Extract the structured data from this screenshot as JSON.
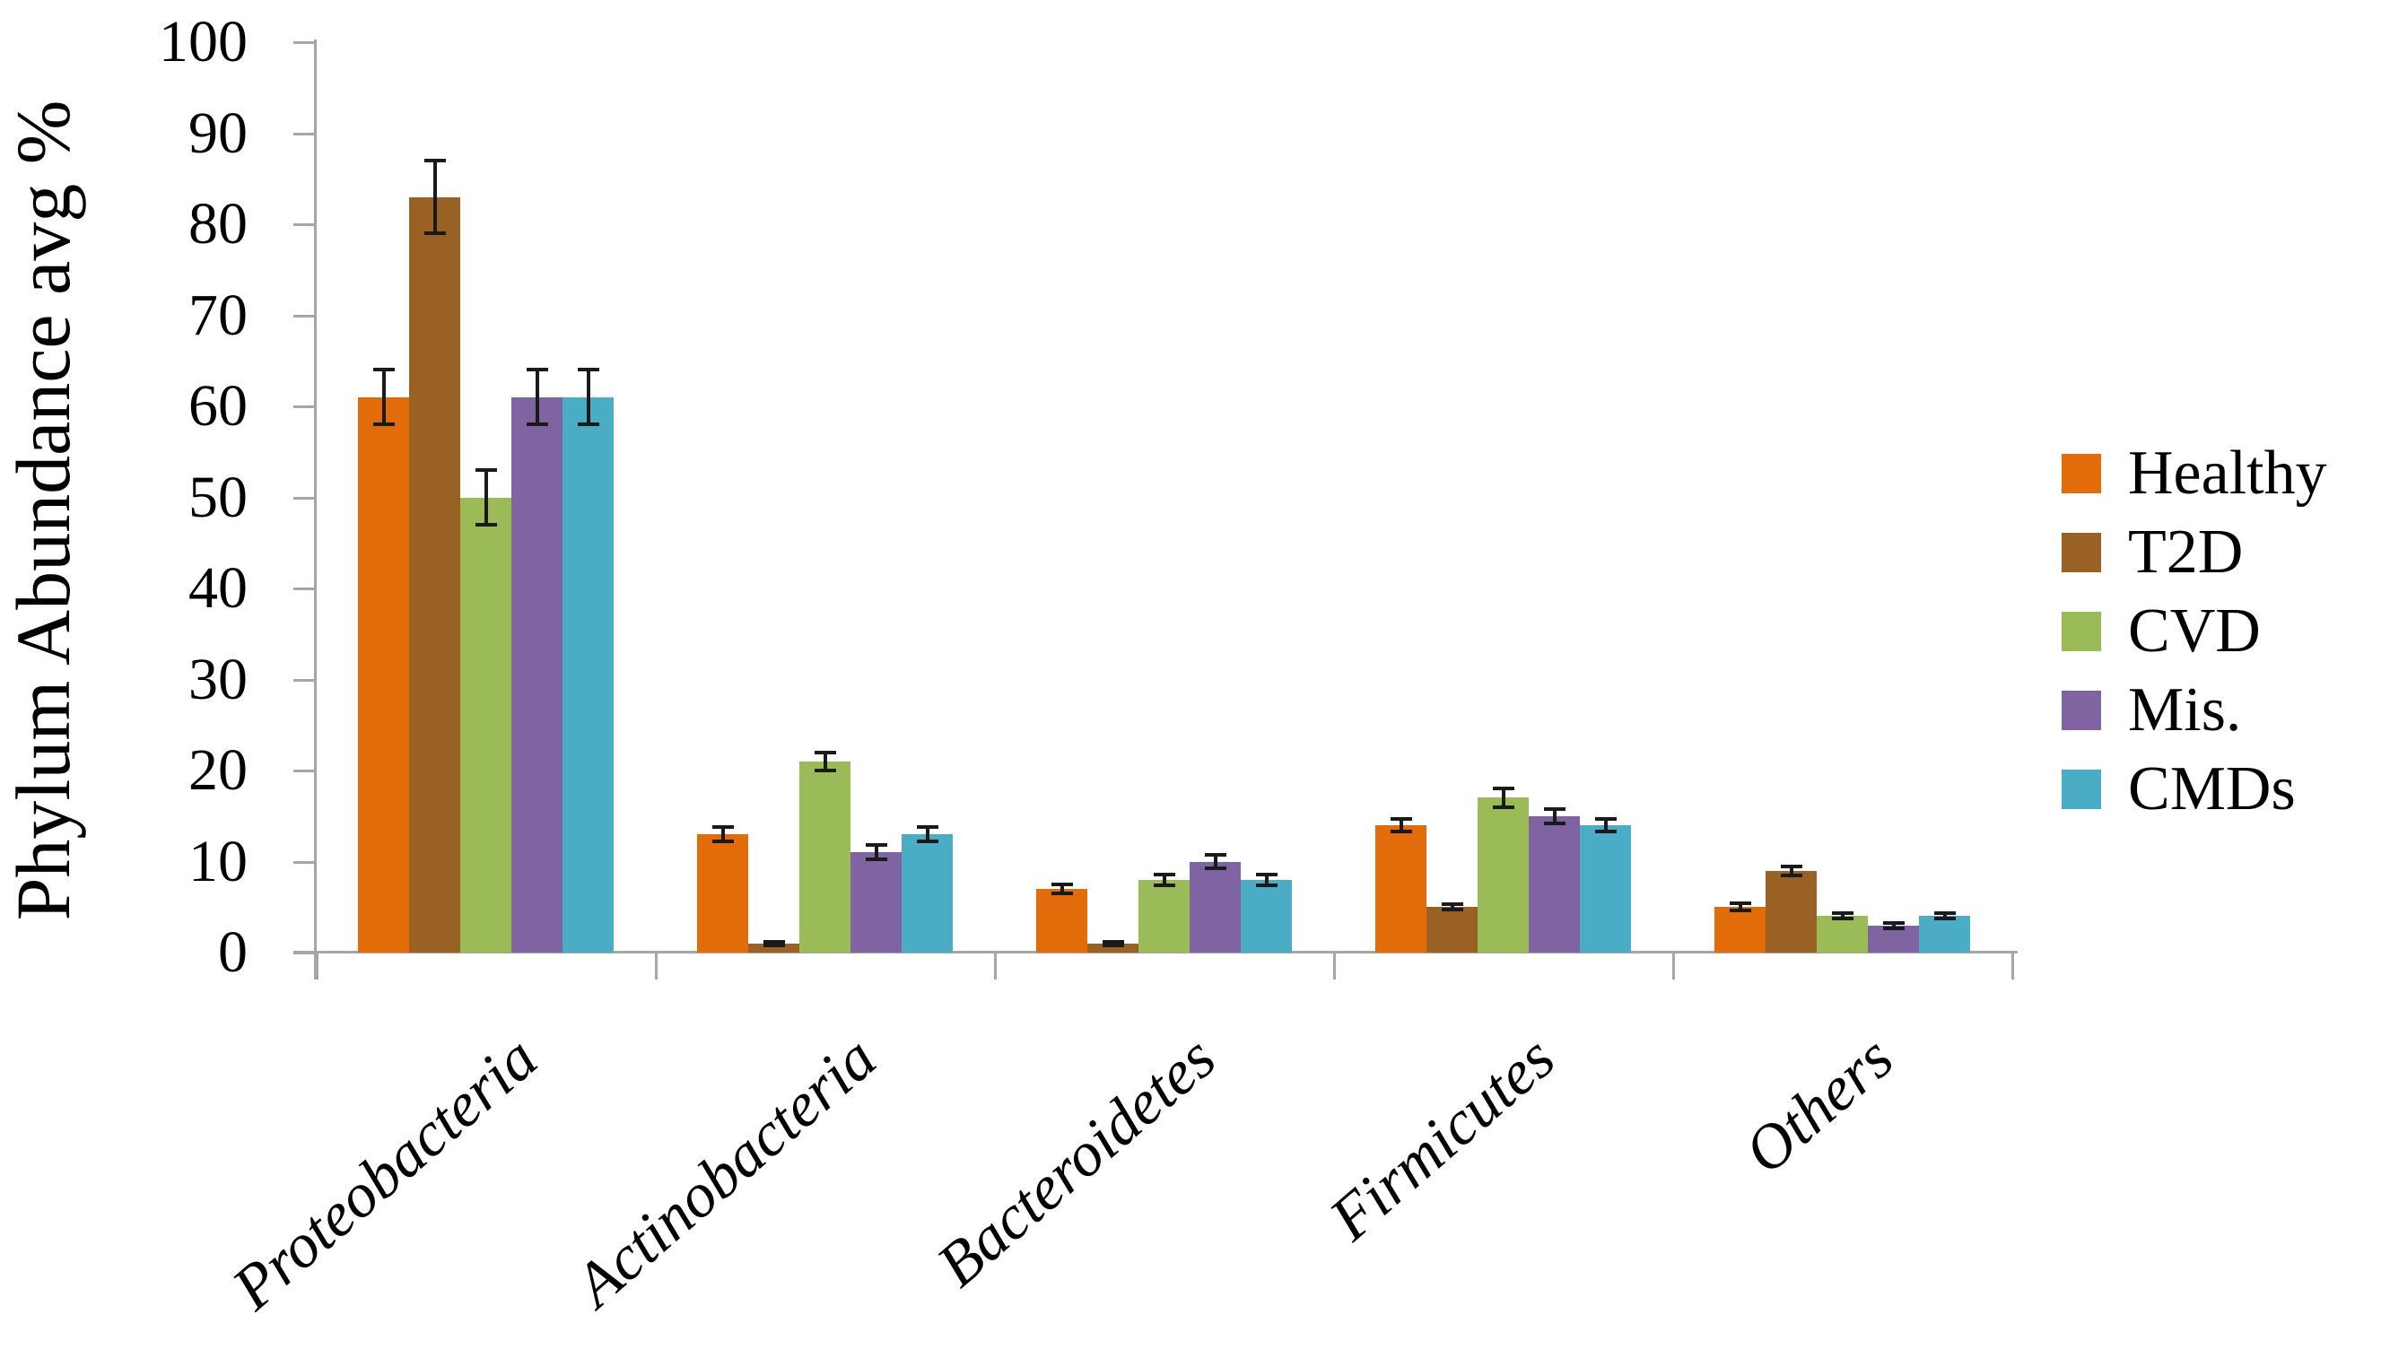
{
  "chart_data": {
    "type": "bar",
    "title": "",
    "ylabel": "Phylum Abundance avg %",
    "xlabel": "",
    "ylim": [
      0,
      100
    ],
    "yticks": [
      0,
      10,
      20,
      30,
      40,
      50,
      60,
      70,
      80,
      90,
      100
    ],
    "grid": false,
    "legend_position": "right",
    "error_bars": true,
    "categories": [
      "Proteobacteria",
      "Actinobacteria",
      "Bacteroidetes",
      "Firmicutes",
      "Others"
    ],
    "series": [
      {
        "name": "Healthy",
        "color": "#E36C0A",
        "values": [
          61,
          13,
          7,
          14,
          5
        ],
        "errors": [
          3,
          0.8,
          0.5,
          0.7,
          0.4
        ]
      },
      {
        "name": "T2D",
        "color": "#9A6125",
        "values": [
          83,
          1,
          1,
          5,
          9
        ],
        "errors": [
          4,
          0.2,
          0.2,
          0.3,
          0.5
        ]
      },
      {
        "name": "CVD",
        "color": "#9BBB59",
        "values": [
          50,
          21,
          8,
          17,
          4
        ],
        "errors": [
          3,
          1,
          0.6,
          1,
          0.3
        ]
      },
      {
        "name": "Mis.",
        "color": "#8064A2",
        "values": [
          61,
          11,
          10,
          15,
          3
        ],
        "errors": [
          3,
          0.8,
          0.7,
          0.8,
          0.3
        ]
      },
      {
        "name": "CMDs",
        "color": "#4BACC6",
        "values": [
          61,
          13,
          8,
          14,
          4
        ],
        "errors": [
          3,
          0.8,
          0.6,
          0.7,
          0.3
        ]
      }
    ]
  }
}
